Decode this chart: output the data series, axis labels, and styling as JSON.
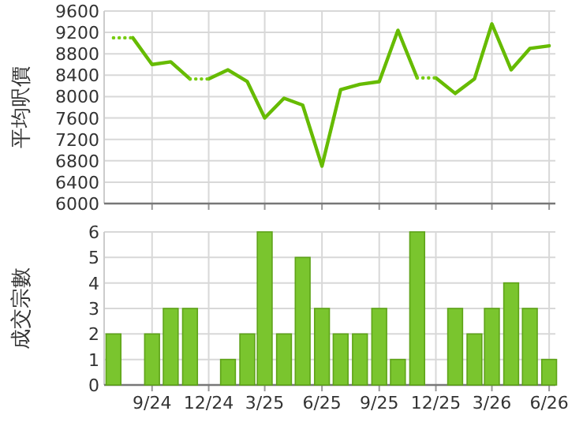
{
  "chart_data": [
    {
      "type": "line",
      "ylabel": "平均呎價",
      "xlim": [
        "2024-06-16",
        "2026-06-11"
      ],
      "ylim": [
        6000,
        9600
      ],
      "yticks": [
        6000,
        6400,
        6800,
        7200,
        7600,
        8000,
        8400,
        8800,
        9200,
        9600
      ],
      "xticks": [
        {
          "value": "2024-09",
          "label": null
        },
        {
          "value": "2024-12",
          "label": null
        },
        {
          "value": "2025-03",
          "label": null
        },
        {
          "value": "2025-06",
          "label": null
        },
        {
          "value": "2025-09",
          "label": null
        },
        {
          "value": "2025-12",
          "label": null
        },
        {
          "value": "2026-03",
          "label": null
        },
        {
          "value": "2026-06",
          "label": null
        }
      ],
      "tick_labels": "y",
      "grid": true,
      "series": [
        {
          "color": "#66bb00",
          "line_style": "solid",
          "x": [
            "2024-08",
            "2024-09",
            "2024-10",
            "2024-11"
          ],
          "values": [
            9100,
            8600,
            8650,
            8330
          ]
        },
        {
          "color": "#66bb00",
          "line_style": "solid",
          "x": [
            "2024-12",
            "2025-01",
            "2025-02",
            "2025-03",
            "2025-04",
            "2025-05",
            "2025-06",
            "2025-07",
            "2025-08",
            "2025-09",
            "2025-10",
            "2025-11"
          ],
          "values": [
            8330,
            8500,
            8280,
            7600,
            7970,
            7840,
            6700,
            8130,
            8230,
            8280,
            9240,
            8350
          ]
        },
        {
          "color": "#66bb00",
          "line_style": "solid",
          "x": [
            "2025-12",
            "2026-01",
            "2026-02",
            "2026-03",
            "2026-04",
            "2026-05",
            "2026-06"
          ],
          "values": [
            8350,
            8060,
            8330,
            9360,
            8500,
            8900,
            8950
          ]
        },
        {
          "color": "#77cc11",
          "line_style": "dotted",
          "x": [
            "2024-07",
            "2024-08"
          ],
          "values": [
            9100,
            9100
          ]
        },
        {
          "color": "#77cc11",
          "line_style": "dotted",
          "x": [
            "2024-11",
            "2024-12"
          ],
          "values": [
            8330,
            8330
          ]
        },
        {
          "color": "#77cc11",
          "line_style": "dotted",
          "x": [
            "2025-11",
            "2025-12"
          ],
          "values": [
            8350,
            8350
          ]
        }
      ]
    },
    {
      "type": "bar",
      "ylabel": "成交宗數",
      "xlim": [
        "2024-06-16",
        "2026-06-11"
      ],
      "ylim": [
        0,
        6
      ],
      "yticks": [
        0,
        1,
        2,
        3,
        4,
        5,
        6
      ],
      "xticks": [
        {
          "value": "2024-09",
          "label": "9/24"
        },
        {
          "value": "2024-12",
          "label": "12/24"
        },
        {
          "value": "2025-03",
          "label": "3/25"
        },
        {
          "value": "2025-06",
          "label": "6/25"
        },
        {
          "value": "2025-09",
          "label": "9/25"
        },
        {
          "value": "2025-12",
          "label": "12/25"
        },
        {
          "value": "2026-03",
          "label": "3/26"
        },
        {
          "value": "2026-06",
          "label": "6/26"
        }
      ],
      "grid": true,
      "x": [
        "2024-07",
        "2024-08",
        "2024-09",
        "2024-10",
        "2024-11",
        "2024-12",
        "2025-01",
        "2025-02",
        "2025-03",
        "2025-04",
        "2025-05",
        "2025-06",
        "2025-07",
        "2025-08",
        "2025-09",
        "2025-10",
        "2025-11",
        "2025-12",
        "2026-01",
        "2026-02",
        "2026-03",
        "2026-04",
        "2026-05",
        "2026-06"
      ],
      "values": [
        2,
        0,
        2,
        3,
        3,
        0,
        1,
        2,
        6,
        2,
        5,
        3,
        2,
        2,
        3,
        1,
        6,
        0,
        3,
        2,
        3,
        4,
        3,
        1
      ],
      "color": "#7ac52e"
    }
  ]
}
